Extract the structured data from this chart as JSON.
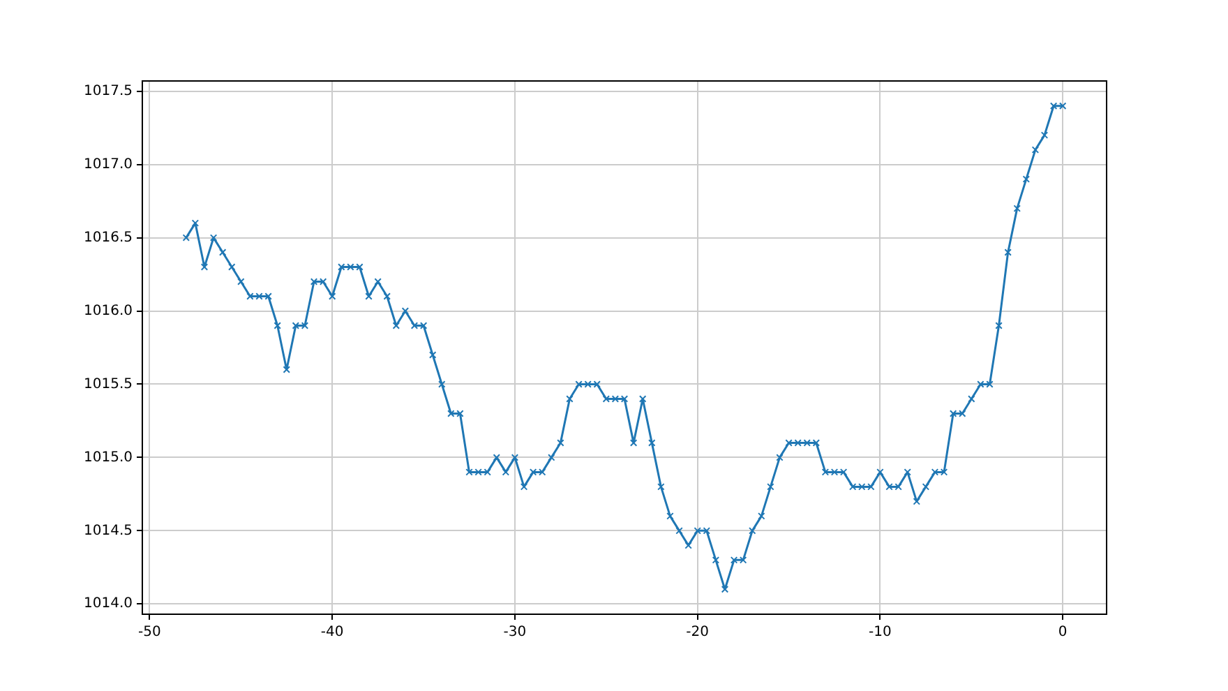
{
  "chart_data": {
    "type": "line",
    "x": [
      -48,
      -47.5,
      -47,
      -46.5,
      -46,
      -45.5,
      -45,
      -44.5,
      -44,
      -43.5,
      -43,
      -42.5,
      -42,
      -41.5,
      -41,
      -40.5,
      -40,
      -39.5,
      -39,
      -38.5,
      -38,
      -37.5,
      -37,
      -36.5,
      -36,
      -35.5,
      -35,
      -34.5,
      -34,
      -33.5,
      -33,
      -32.5,
      -32,
      -31.5,
      -31,
      -30.5,
      -30,
      -29.5,
      -29,
      -28.5,
      -28,
      -27.5,
      -27,
      -26.5,
      -26,
      -25.5,
      -25,
      -24.5,
      -24,
      -23.5,
      -23,
      -22.5,
      -22,
      -21.5,
      -21,
      -20.5,
      -20,
      -19.5,
      -19,
      -18.5,
      -18,
      -17.5,
      -17,
      -16.5,
      -16,
      -15.5,
      -15,
      -14.5,
      -14,
      -13.5,
      -13,
      -12.5,
      -12,
      -11.5,
      -11,
      -10.5,
      -10,
      -9.5,
      -9,
      -8.5,
      -8,
      -7.5,
      -7,
      -6.5,
      -6,
      -5.5,
      -5,
      -4.5,
      -4,
      -3.5,
      -3,
      -2.5,
      -2,
      -1.5,
      -1,
      -0.5,
      0
    ],
    "series": [
      {
        "color": "#1f77b4",
        "values": [
          1016.5,
          1016.6,
          1016.3,
          1016.5,
          1016.4,
          1016.3,
          1016.2,
          1016.1,
          1016.1,
          1016.1,
          1015.9,
          1015.6,
          1015.9,
          1015.9,
          1016.2,
          1016.2,
          1016.1,
          1016.3,
          1016.3,
          1016.3,
          1016.1,
          1016.2,
          1016.1,
          1015.9,
          1016.0,
          1015.9,
          1015.9,
          1015.7,
          1015.5,
          1015.3,
          1015.3,
          1014.9,
          1014.9,
          1014.9,
          1015.0,
          1014.9,
          1015.0,
          1014.8,
          1014.9,
          1014.9,
          1015.0,
          1015.1,
          1015.4,
          1015.5,
          1015.5,
          1015.5,
          1015.4,
          1015.4,
          1015.4,
          1015.1,
          1015.4,
          1015.1,
          1014.8,
          1014.6,
          1014.5,
          1014.4,
          1014.5,
          1014.5,
          1014.3,
          1014.1,
          1014.3,
          1014.3,
          1014.5,
          1014.6,
          1014.8,
          1015.0,
          1015.1,
          1015.1,
          1015.1,
          1015.1,
          1014.9,
          1014.9,
          1014.9,
          1014.8,
          1014.8,
          1014.8,
          1014.9,
          1014.8,
          1014.8,
          1014.9,
          1014.7,
          1014.8,
          1014.9,
          1014.9,
          1015.3,
          1015.3,
          1015.4,
          1015.5,
          1015.5,
          1015.9,
          1016.4,
          1016.7,
          1016.9,
          1017.1,
          1017.2,
          1017.4,
          1017.4
        ]
      }
    ],
    "xlim": [
      -50.4,
      2.4
    ],
    "xticks": [
      -50,
      -40,
      -30,
      -20,
      -10,
      0
    ],
    "ylim": [
      1013.93,
      1017.57
    ],
    "yticks": [
      {
        "value": 1014,
        "label": "1014.0"
      },
      {
        "value": 1014.5,
        "label": "1014.5"
      },
      {
        "value": 1015,
        "label": "1015.0"
      },
      {
        "value": 1015.5,
        "label": "1015.5"
      },
      {
        "value": 1016,
        "label": "1016.0"
      },
      {
        "value": 1016.5,
        "label": "1016.5"
      },
      {
        "value": 1017,
        "label": "1017.0"
      },
      {
        "value": 1017.5,
        "label": "1017.5"
      }
    ],
    "grid": true,
    "legend": false,
    "marker": "cross",
    "line_style": "solid"
  }
}
